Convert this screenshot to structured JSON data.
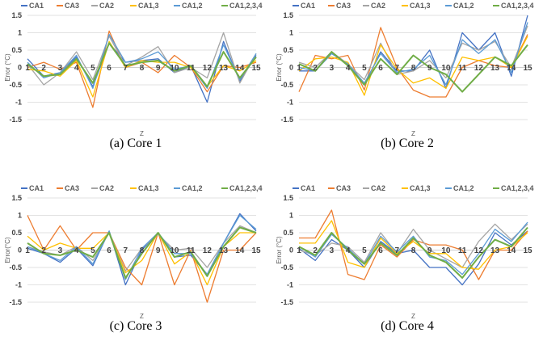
{
  "colors": {
    "CA1": "#4472C4",
    "CA3": "#ED7D31",
    "CA2": "#A5A5A5",
    "CA1,3": "#FFC000",
    "CA1,2": "#5B9BD5",
    "CA1,2,3,4": "#70AD47"
  },
  "chart_data": [
    {
      "type": "line",
      "caption": "(a) Core 1",
      "xlabel": "Z",
      "ylabel": "Error (°C)",
      "ylim": [
        -1.5,
        1.5
      ],
      "yticks": [
        "1.5",
        "1",
        "0.5",
        "0",
        "-0.5",
        "-1",
        "-1.5"
      ],
      "grid": true,
      "legend_position": "top",
      "categories": [
        "1",
        "2",
        "3",
        "4",
        "5",
        "6",
        "7",
        "8",
        "9",
        "10",
        "11",
        "12",
        "13",
        "14",
        "15"
      ],
      "series": [
        {
          "name": "CA1",
          "values": [
            0.25,
            -0.25,
            -0.15,
            0.3,
            -0.55,
            0.7,
            0.15,
            0.2,
            0.25,
            -0.15,
            0.05,
            -1.0,
            0.75,
            -0.4,
            0.35
          ]
        },
        {
          "name": "CA3",
          "values": [
            0.0,
            0.15,
            -0.05,
            0.15,
            -1.15,
            1.05,
            0.0,
            0.15,
            -0.15,
            0.35,
            0.0,
            -0.7,
            0.05,
            0.0,
            0.15
          ]
        },
        {
          "name": "CA2",
          "values": [
            0.1,
            -0.5,
            -0.15,
            0.45,
            -0.35,
            0.9,
            0.05,
            0.3,
            0.6,
            -0.15,
            0.0,
            -0.3,
            1.0,
            -0.45,
            0.4
          ]
        },
        {
          "name": "CA1,3",
          "values": [
            -0.05,
            -0.1,
            -0.25,
            0.2,
            -0.85,
            0.75,
            0.0,
            0.2,
            0.15,
            0.15,
            0.0,
            -0.55,
            0.05,
            -0.1,
            0.2
          ]
        },
        {
          "name": "CA1,2",
          "values": [
            0.15,
            -0.3,
            -0.15,
            0.35,
            -0.6,
            0.95,
            0.15,
            0.25,
            0.45,
            -0.05,
            0.05,
            -0.6,
            0.65,
            -0.35,
            0.4
          ]
        },
        {
          "name": "CA1,2,3,4",
          "values": [
            0.1,
            -0.25,
            -0.2,
            0.25,
            -0.45,
            0.7,
            0.05,
            0.15,
            0.2,
            -0.1,
            0.05,
            -0.55,
            0.45,
            -0.3,
            0.3
          ]
        }
      ]
    },
    {
      "type": "line",
      "caption": "(b) Core 2",
      "xlabel": "Z",
      "ylabel": "Error (°C)",
      "ylim": [
        -1.5,
        1.5
      ],
      "yticks": [
        "1.5",
        "1",
        "0.5",
        "0",
        "-0.5",
        "-1",
        "-1.5"
      ],
      "grid": true,
      "legend_position": "top",
      "categories": [
        "1",
        "2",
        "3",
        "4",
        "5",
        "6",
        "7",
        "8",
        "9",
        "10",
        "11",
        "12",
        "13",
        "14",
        "15"
      ],
      "series": [
        {
          "name": "CA1",
          "values": [
            -0.1,
            -0.1,
            0.4,
            0.1,
            -0.5,
            0.45,
            -0.1,
            -0.1,
            0.5,
            -0.6,
            1.0,
            0.5,
            1.0,
            -0.25,
            1.5
          ]
        },
        {
          "name": "CA3",
          "values": [
            -0.7,
            0.35,
            0.25,
            0.35,
            -0.65,
            1.15,
            0.0,
            -0.65,
            -0.85,
            -0.85,
            0.0,
            0.2,
            0.05,
            0.0,
            0.95
          ]
        },
        {
          "name": "CA2",
          "values": [
            0.15,
            0.0,
            0.45,
            0.1,
            -0.35,
            0.7,
            -0.2,
            -0.1,
            0.2,
            -0.3,
            0.7,
            0.5,
            0.75,
            0.0,
            1.2
          ]
        },
        {
          "name": "CA1,3",
          "values": [
            -0.1,
            0.25,
            0.3,
            0.15,
            -0.8,
            0.65,
            -0.05,
            -0.45,
            -0.3,
            -0.6,
            0.3,
            0.2,
            0.3,
            0.0,
            0.9
          ]
        },
        {
          "name": "CA1,2",
          "values": [
            0.0,
            -0.1,
            0.4,
            0.1,
            -0.45,
            0.4,
            -0.15,
            -0.05,
            0.35,
            -0.5,
            0.8,
            0.4,
            0.8,
            -0.15,
            1.3
          ]
        },
        {
          "name": "CA1,2,3,4",
          "values": [
            0.1,
            -0.1,
            0.45,
            0.05,
            -0.5,
            0.25,
            -0.2,
            0.35,
            0.0,
            -0.2,
            -0.7,
            -0.2,
            0.3,
            0.05,
            0.65
          ]
        }
      ]
    },
    {
      "type": "line",
      "caption": "(c) Core 3",
      "xlabel": "Z",
      "ylabel": "Error(°C)",
      "ylim": [
        -1.5,
        1.5
      ],
      "yticks": [
        "1.5",
        "1",
        "0.5",
        "0",
        "-0.5",
        "-1",
        "-1.5"
      ],
      "grid": true,
      "legend_position": "top",
      "categories": [
        "1",
        "2",
        "3",
        "4",
        "5",
        "6",
        "7",
        "8",
        "9",
        "10",
        "11",
        "12",
        "13",
        "14",
        "15"
      ],
      "series": [
        {
          "name": "CA1",
          "values": [
            0.05,
            -0.1,
            -0.35,
            0.05,
            -0.45,
            0.55,
            -1.0,
            0.0,
            0.5,
            -0.2,
            -0.15,
            -0.7,
            0.2,
            1.05,
            0.55
          ]
        },
        {
          "name": "CA3",
          "values": [
            1.0,
            0.0,
            0.7,
            0.0,
            0.5,
            0.5,
            -0.5,
            -1.0,
            0.5,
            -1.0,
            0.0,
            -1.5,
            0.0,
            0.0,
            0.5
          ]
        },
        {
          "name": "CA2",
          "values": [
            0.1,
            -0.05,
            -0.15,
            0.1,
            -0.3,
            0.5,
            -0.6,
            0.05,
            0.45,
            0.0,
            0.05,
            -0.5,
            0.2,
            0.7,
            0.5
          ]
        },
        {
          "name": "CA1,3",
          "values": [
            0.4,
            0.0,
            0.2,
            0.05,
            0.05,
            0.5,
            -0.65,
            -0.3,
            0.5,
            -0.4,
            -0.05,
            -1.0,
            0.1,
            0.5,
            0.5
          ]
        },
        {
          "name": "CA1,2",
          "values": [
            0.1,
            -0.1,
            -0.3,
            0.1,
            -0.4,
            0.55,
            -0.85,
            0.05,
            0.5,
            -0.1,
            -0.1,
            -0.7,
            0.2,
            1.0,
            0.6
          ]
        },
        {
          "name": "CA1,2,3,4",
          "values": [
            0.2,
            -0.1,
            -0.15,
            0.0,
            -0.2,
            0.5,
            -0.8,
            -0.1,
            0.5,
            -0.2,
            -0.05,
            -0.75,
            0.1,
            0.65,
            0.5
          ]
        }
      ]
    },
    {
      "type": "line",
      "caption": "(d) Core 4",
      "xlabel": "Z",
      "ylabel": "Error (°C)",
      "ylim": [
        -1.5,
        1.5
      ],
      "yticks": [
        "1.5",
        "1",
        "0.5",
        "0",
        "-0.5",
        "-1",
        "-1.5"
      ],
      "grid": true,
      "legend_position": "top",
      "categories": [
        "1",
        "2",
        "3",
        "4",
        "5",
        "6",
        "7",
        "8",
        "9",
        "10",
        "11",
        "12",
        "13",
        "14",
        "15"
      ],
      "series": [
        {
          "name": "CA1",
          "values": [
            0.05,
            -0.3,
            0.3,
            0.0,
            -0.5,
            0.25,
            -0.1,
            0.0,
            -0.5,
            -0.5,
            -1.0,
            -0.4,
            0.5,
            0.15,
            0.55
          ]
        },
        {
          "name": "CA3",
          "values": [
            0.35,
            0.35,
            1.15,
            -0.7,
            -0.85,
            0.15,
            -0.2,
            0.3,
            0.15,
            0.15,
            0.0,
            -0.85,
            0.0,
            0.0,
            0.55
          ]
        },
        {
          "name": "CA2",
          "values": [
            0.0,
            -0.15,
            0.2,
            0.1,
            -0.35,
            0.5,
            -0.1,
            0.6,
            0.0,
            -0.25,
            -0.5,
            0.25,
            0.75,
            0.3,
            0.75
          ]
        },
        {
          "name": "CA1,3",
          "values": [
            0.2,
            0.2,
            0.85,
            -0.35,
            -0.5,
            0.35,
            -0.1,
            0.25,
            -0.1,
            -0.1,
            -0.5,
            -0.55,
            0.0,
            0.1,
            0.5
          ]
        },
        {
          "name": "CA1,2",
          "values": [
            0.1,
            -0.2,
            0.45,
            0.05,
            -0.4,
            0.4,
            -0.05,
            0.4,
            -0.2,
            -0.3,
            -0.7,
            -0.1,
            0.6,
            0.25,
            0.8
          ]
        },
        {
          "name": "CA1,2,3,4",
          "values": [
            0.1,
            -0.15,
            0.5,
            0.0,
            -0.4,
            0.2,
            -0.15,
            0.35,
            -0.15,
            -0.35,
            -0.8,
            -0.2,
            0.3,
            0.1,
            0.65
          ]
        }
      ]
    }
  ]
}
